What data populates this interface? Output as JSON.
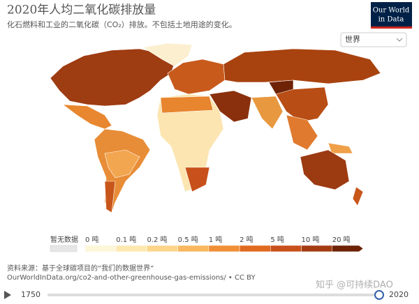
{
  "header": {
    "title": "2020年人均二氧化碳排放量",
    "subtitle": "化石燃料和工业的二氧化碳（CO₂）排放。不包括土地用途的变化。"
  },
  "logo": {
    "line1": "Our World",
    "line2": "in Data"
  },
  "selector": {
    "label": "世界"
  },
  "legend": {
    "no_data": "暂无数据",
    "labels": [
      "0 吨",
      "0.1 吨",
      "0.2 吨",
      "0.5 吨",
      "1 吨",
      "2 吨",
      "5 吨",
      "10 吨",
      "20 吨"
    ],
    "colors": [
      "#fef6d8",
      "#fde9b0",
      "#fcd58a",
      "#f9b860",
      "#f08f36",
      "#e06a1f",
      "#c8501a",
      "#a33b12",
      "#6e2206"
    ]
  },
  "source": {
    "line1": "资料来源：基于全球碳项目的“我们的数据世界”",
    "line2": "OurWorldInData.org/co2-and-other-greenhouse-gas-emissions/ • CC BY"
  },
  "watermark": "知乎 @可持续DAO",
  "timeline": {
    "start": "1750",
    "end": "2020"
  }
}
